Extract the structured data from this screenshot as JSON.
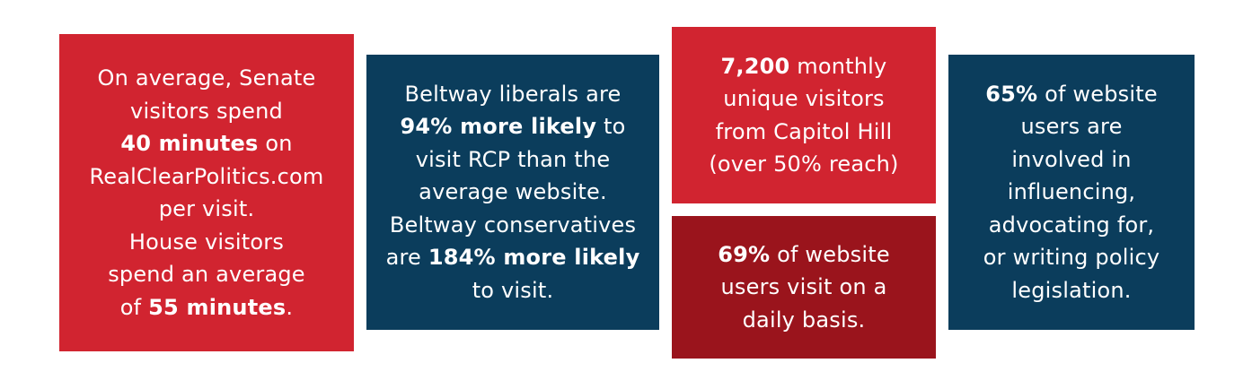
{
  "colors": {
    "red": "#d12430",
    "navy": "#0b3d5c",
    "dark_red": "#9a141c",
    "text": "#ffffff"
  },
  "tiles": [
    {
      "lines": [
        [
          {
            "t": "On average, Senate",
            "b": false
          }
        ],
        [
          {
            "t": "visitors spend",
            "b": false
          }
        ],
        [
          {
            "t": "40 minutes",
            "b": true
          },
          {
            "t": " on",
            "b": false
          }
        ],
        [
          {
            "t": "RealClearPolitics.com",
            "b": false
          }
        ],
        [
          {
            "t": "per visit.",
            "b": false
          }
        ],
        [
          {
            "t": "House visitors",
            "b": false
          }
        ],
        [
          {
            "t": "spend an average",
            "b": false
          }
        ],
        [
          {
            "t": "of ",
            "b": false
          },
          {
            "t": "55 minutes",
            "b": true
          },
          {
            "t": ".",
            "b": false
          }
        ]
      ]
    },
    {
      "lines": [
        [
          {
            "t": "Beltway liberals are",
            "b": false
          }
        ],
        [
          {
            "t": "94% more likely",
            "b": true
          },
          {
            "t": " to",
            "b": false
          }
        ],
        [
          {
            "t": "visit RCP than the",
            "b": false
          }
        ],
        [
          {
            "t": "average website.",
            "b": false
          }
        ],
        [
          {
            "t": "Beltway conservatives",
            "b": false
          }
        ],
        [
          {
            "t": "are ",
            "b": false
          },
          {
            "t": "184% more likely",
            "b": true
          }
        ],
        [
          {
            "t": "to visit.",
            "b": false
          }
        ]
      ]
    },
    {
      "lines": [
        [
          {
            "t": "7,200",
            "b": true
          },
          {
            "t": " monthly",
            "b": false
          }
        ],
        [
          {
            "t": "unique visitors",
            "b": false
          }
        ],
        [
          {
            "t": "from Capitol Hill",
            "b": false
          }
        ],
        [
          {
            "t": "(over 50% reach)",
            "b": false
          }
        ]
      ]
    },
    {
      "lines": [
        [
          {
            "t": "69%",
            "b": true
          },
          {
            "t": " of website",
            "b": false
          }
        ],
        [
          {
            "t": "users visit on a",
            "b": false
          }
        ],
        [
          {
            "t": "daily basis.",
            "b": false
          }
        ]
      ]
    },
    {
      "lines": [
        [
          {
            "t": "65%",
            "b": true
          },
          {
            "t": " of website",
            "b": false
          }
        ],
        [
          {
            "t": "users are",
            "b": false
          }
        ],
        [
          {
            "t": "involved in",
            "b": false
          }
        ],
        [
          {
            "t": "influencing,",
            "b": false
          }
        ],
        [
          {
            "t": "advocating for,",
            "b": false
          }
        ],
        [
          {
            "t": "or writing policy",
            "b": false
          }
        ],
        [
          {
            "t": "legislation.",
            "b": false
          }
        ]
      ]
    }
  ]
}
